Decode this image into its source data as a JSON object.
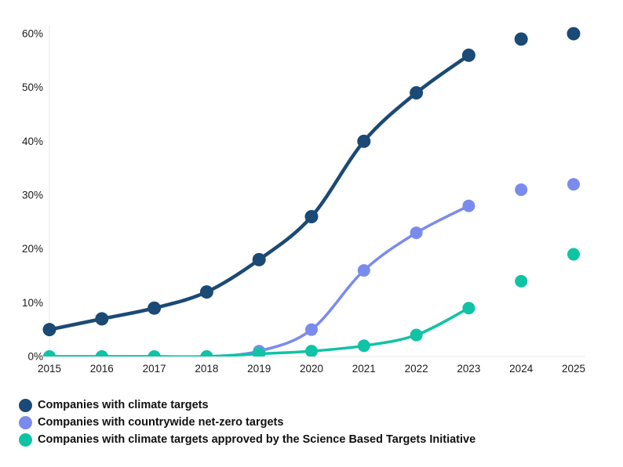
{
  "chart_data": {
    "type": "line",
    "x": [
      "2015",
      "2016",
      "2017",
      "2018",
      "2019",
      "2020",
      "2021",
      "2022",
      "2023",
      "2024",
      "2025"
    ],
    "ylim": [
      0,
      60
    ],
    "yticks": [
      {
        "value": 0,
        "label": "0%"
      },
      {
        "value": 10,
        "label": "10%"
      },
      {
        "value": 20,
        "label": "20%"
      },
      {
        "value": 30,
        "label": "30%"
      },
      {
        "value": 40,
        "label": "40%"
      },
      {
        "value": 50,
        "label": "50%"
      },
      {
        "value": 60,
        "label": "60%"
      }
    ],
    "title": "",
    "xlabel": "",
    "ylabel": "",
    "grid": "axes-only",
    "legend_position": "bottom-left",
    "line_until_x": "2023",
    "dot_only_x": [
      "2024",
      "2025"
    ],
    "series": [
      {
        "name": "Companies with climate targets",
        "color": "#1A4A75",
        "values": [
          5,
          7,
          9,
          12,
          18,
          26,
          40,
          49,
          56,
          59,
          60
        ]
      },
      {
        "name": "Companies with countrywide net-zero targets",
        "color": "#7A8BEE",
        "values": [
          0,
          0,
          0,
          0,
          1,
          5,
          16,
          23,
          28,
          31,
          32
        ]
      },
      {
        "name": "Companies with climate targets approved by the Science Based Targets Initiative",
        "color": "#0FC3A5",
        "values": [
          0,
          0,
          0,
          0,
          0.5,
          1,
          2,
          4,
          9,
          14,
          19
        ]
      }
    ]
  },
  "colors": {
    "background": "#ffffff",
    "axis_line": "#e9e9e9",
    "tick_text": "#1c1c1c",
    "legend_text": "#111111"
  }
}
